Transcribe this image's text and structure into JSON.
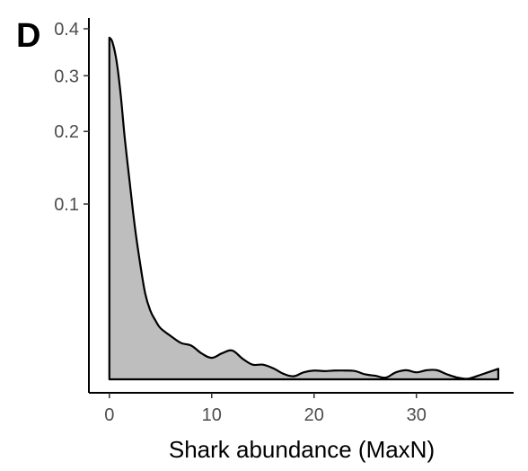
{
  "chart_data": {
    "type": "area",
    "panel_label": "D",
    "title": "",
    "xlabel": "Shark abundance (MaxN)",
    "ylabel": "",
    "x_range": [
      0,
      38
    ],
    "xlim": [
      -2,
      39.5
    ],
    "x_ticks": [
      0,
      10,
      20,
      30
    ],
    "x_tick_labels": [
      "0",
      "10",
      "20",
      "30"
    ],
    "y_scale": "sqrt",
    "ylim": [
      0,
      0.4
    ],
    "y_ticks": [
      0.1,
      0.2,
      0.3,
      0.4
    ],
    "y_tick_labels": [
      "0.1",
      "0.2",
      "0.3",
      "0.4"
    ],
    "grid": false,
    "legend": "none",
    "fill_color": "#bebebe",
    "line_color": "#000000",
    "series": [
      {
        "x": [
          0,
          0.3,
          0.7,
          1.1,
          1.5,
          2,
          2.5,
          3,
          3.5,
          4,
          4.5,
          5,
          6,
          7,
          8,
          9,
          10,
          11,
          12,
          13,
          14,
          15,
          16,
          17,
          18,
          19,
          20,
          21,
          22,
          23,
          24,
          25,
          26,
          27,
          28,
          29,
          30,
          31,
          32,
          33,
          34,
          35,
          36,
          37,
          38
        ],
        "y": [
          0.38,
          0.37,
          0.33,
          0.265,
          0.19,
          0.125,
          0.075,
          0.044,
          0.024,
          0.0154,
          0.0113,
          0.0085,
          0.0061,
          0.0043,
          0.0037,
          0.0022,
          0.0015,
          0.0022,
          0.0027,
          0.0014,
          0.0007,
          0.0007,
          0.0004,
          0.0001,
          3e-05,
          0.00016,
          0.00025,
          0.00022,
          0.00025,
          0.00025,
          0.00022,
          8e-05,
          4e-05,
          1e-05,
          0.00016,
          0.00027,
          0.00016,
          0.00027,
          0.00027,
          8e-05,
          1e-05,
          1e-06,
          4e-05,
          0.00016,
          0.00036
        ]
      }
    ]
  }
}
